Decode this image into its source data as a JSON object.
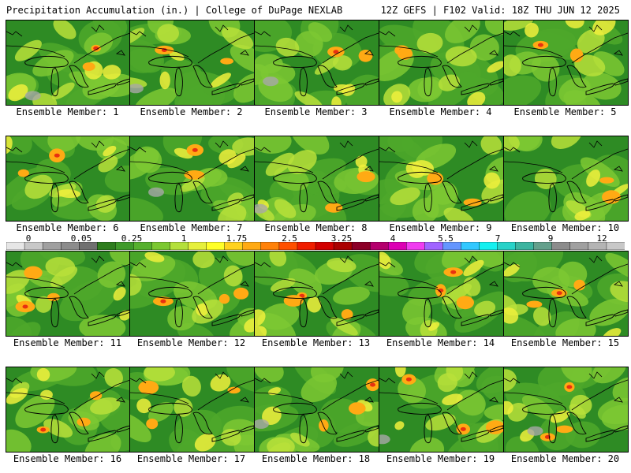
{
  "header": {
    "title_left": "Precipitation Accumulation (in.) | College of DuPage NEXLAB",
    "title_right": "12Z GEFS | F102 Valid: 18Z THU JUN 12 2025"
  },
  "panels": [
    {
      "label": "Ensemble Member: 1"
    },
    {
      "label": "Ensemble Member: 2"
    },
    {
      "label": "Ensemble Member: 3"
    },
    {
      "label": "Ensemble Member: 4"
    },
    {
      "label": "Ensemble Member: 5"
    },
    {
      "label": "Ensemble Member: 6"
    },
    {
      "label": "Ensemble Member: 7"
    },
    {
      "label": "Ensemble Member: 8"
    },
    {
      "label": "Ensemble Member: 9"
    },
    {
      "label": "Ensemble Member: 10"
    },
    {
      "label": "Ensemble Member: 11"
    },
    {
      "label": "Ensemble Member: 12"
    },
    {
      "label": "Ensemble Member: 13"
    },
    {
      "label": "Ensemble Member: 14"
    },
    {
      "label": "Ensemble Member: 15"
    },
    {
      "label": "Ensemble Member: 16"
    },
    {
      "label": "Ensemble Member: 17"
    },
    {
      "label": "Ensemble Member: 18"
    },
    {
      "label": "Ensemble Member: 19"
    },
    {
      "label": "Ensemble Member: 20"
    }
  ],
  "colorbar": {
    "tick_labels": [
      "0",
      "0.05",
      "0.25",
      "1",
      "1.75",
      "2.5",
      "3.25",
      "4",
      "5.5",
      "7",
      "9",
      "12"
    ],
    "colors": [
      "#e6e6e6",
      "#c8c8c8",
      "#a0a0a0",
      "#8c8c8c",
      "#707070",
      "#2e7d1e",
      "#3f9a2a",
      "#56b02e",
      "#7cc832",
      "#b4e03c",
      "#e6f03c",
      "#ffff28",
      "#ffd21e",
      "#ffaa14",
      "#ff820a",
      "#ff5000",
      "#f01e00",
      "#d20000",
      "#aa0000",
      "#8c0028",
      "#b4006e",
      "#dc00b4",
      "#f03cf0",
      "#a064ff",
      "#6496ff",
      "#32c8ff",
      "#14f0f0",
      "#28d2c8",
      "#3cb4a0",
      "#64a08c",
      "#8c8c8c",
      "#a0a0a0",
      "#b4b4b4",
      "#c8c8c8"
    ]
  },
  "field_colors": {
    "dark_green": "#2e8b24",
    "mid_green": "#4ea82a",
    "light_green": "#7cc832",
    "yellow_green": "#b8e03a",
    "yellow": "#f0f03c",
    "orange": "#ffaa14",
    "red": "#e83010",
    "gray": "#a8a8a8"
  }
}
